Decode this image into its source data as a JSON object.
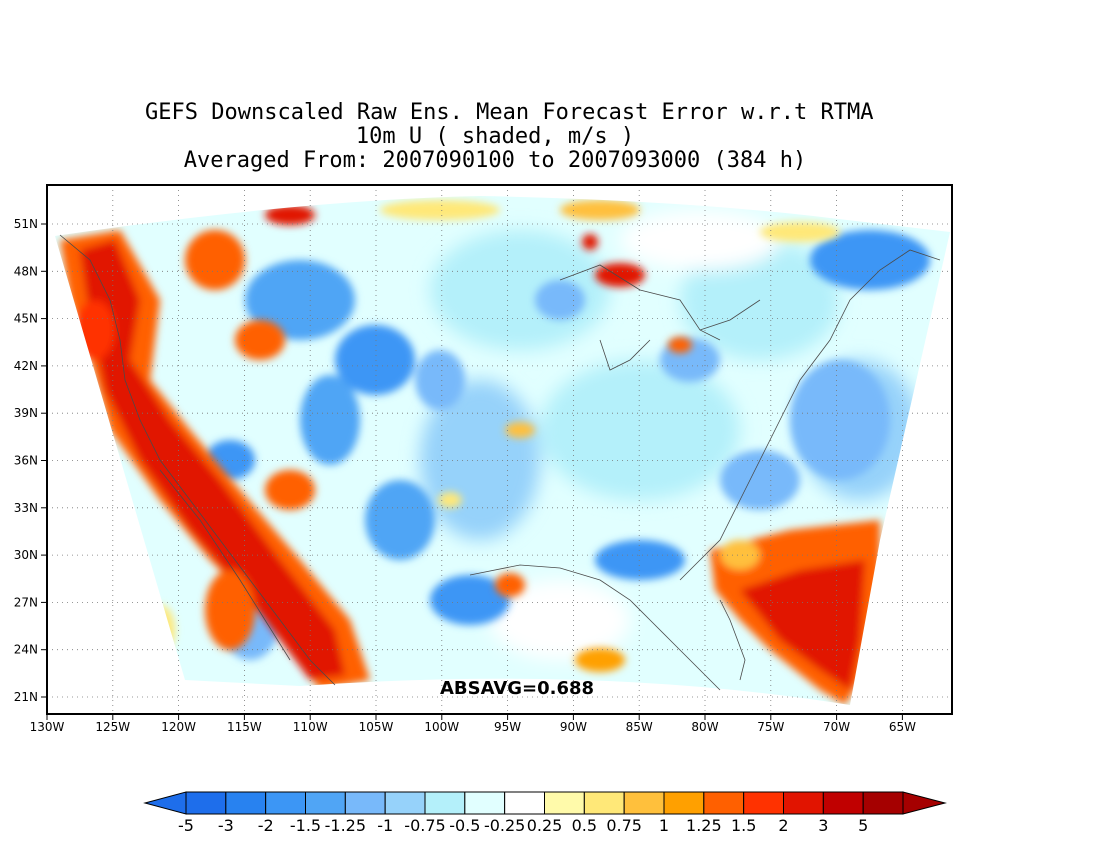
{
  "title": {
    "line1": "GEFS Downscaled Raw Ens. Mean Forecast Error w.r.t RTMA",
    "line2": "10m U ( shaded, m/s )",
    "line3": "Averaged From: 2007090100 to 2007093000 (384 h)"
  },
  "map": {
    "lat_ticks": [
      "51N",
      "48N",
      "45N",
      "42N",
      "39N",
      "36N",
      "33N",
      "30N",
      "27N",
      "24N",
      "21N"
    ],
    "lon_ticks": [
      "130W",
      "125W",
      "120W",
      "115W",
      "110W",
      "105W",
      "100W",
      "95W",
      "90W",
      "85W",
      "80W",
      "75W",
      "70W",
      "65W"
    ],
    "annotation": "ABSAVG=0.688"
  },
  "colorbar": {
    "labels": [
      "-5",
      "-3",
      "-2",
      "-1.5",
      "-1.25",
      "-1",
      "-0.75",
      "-0.5",
      "-0.25",
      "0.25",
      "0.5",
      "0.75",
      "1",
      "1.25",
      "1.5",
      "2",
      "3",
      "5"
    ],
    "colors": [
      "#1e6eeb",
      "#2882f0",
      "#3c96f5",
      "#50a5f5",
      "#78b9fa",
      "#96d2fa",
      "#b4f0fa",
      "#e1ffff",
      "#ffffff",
      "#fffaaa",
      "#ffe878",
      "#ffc03c",
      "#ffa000",
      "#ff6000",
      "#ff3200",
      "#e11400",
      "#c00000",
      "#a50000"
    ]
  }
}
